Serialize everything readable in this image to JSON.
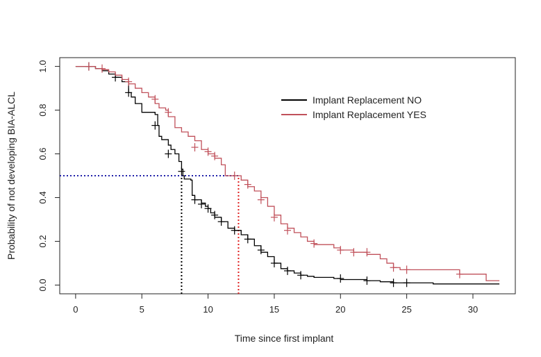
{
  "chart_data": {
    "type": "line",
    "subtype": "kaplan-meier-step",
    "title": "",
    "xlabel": "Time since first implant",
    "ylabel": "Probability of not developing BIA-ALCL",
    "xlim": [
      -1.2,
      33.2
    ],
    "ylim": [
      -0.04,
      1.04
    ],
    "x_ticks": [
      0,
      5,
      10,
      15,
      20,
      25,
      30
    ],
    "y_ticks": [
      0.0,
      0.2,
      0.4,
      0.6,
      0.8,
      1.0
    ],
    "x_tick_labels": [
      "0",
      "5",
      "10",
      "15",
      "20",
      "25",
      "30"
    ],
    "y_tick_labels": [
      "0.0",
      "0.2",
      "0.4",
      "0.6",
      "0.8",
      "1.0"
    ],
    "grid": false,
    "legend_position": "top-right",
    "series": [
      {
        "name": "Implant Replacement NO",
        "color": "#000000",
        "steps": [
          [
            0,
            1.0
          ],
          [
            1.5,
            0.99
          ],
          [
            2,
            0.98
          ],
          [
            2.5,
            0.965
          ],
          [
            3,
            0.95
          ],
          [
            3.5,
            0.93
          ],
          [
            4,
            0.88
          ],
          [
            4.2,
            0.86
          ],
          [
            4.5,
            0.83
          ],
          [
            5,
            0.79
          ],
          [
            6,
            0.78
          ],
          [
            6.2,
            0.73
          ],
          [
            6.3,
            0.68
          ],
          [
            6.5,
            0.665
          ],
          [
            7,
            0.64
          ],
          [
            7.2,
            0.62
          ],
          [
            7.5,
            0.6
          ],
          [
            7.8,
            0.565
          ],
          [
            8,
            0.53
          ],
          [
            8.1,
            0.5
          ],
          [
            8.2,
            0.485
          ],
          [
            8.7,
            0.48
          ],
          [
            8.8,
            0.41
          ],
          [
            9,
            0.39
          ],
          [
            9.5,
            0.375
          ],
          [
            9.8,
            0.36
          ],
          [
            10,
            0.35
          ],
          [
            10.2,
            0.33
          ],
          [
            10.5,
            0.31
          ],
          [
            11,
            0.29
          ],
          [
            11.5,
            0.26
          ],
          [
            12,
            0.25
          ],
          [
            12.5,
            0.23
          ],
          [
            13,
            0.21
          ],
          [
            13.5,
            0.18
          ],
          [
            14,
            0.15
          ],
          [
            14.5,
            0.13
          ],
          [
            15,
            0.1
          ],
          [
            15.5,
            0.075
          ],
          [
            16,
            0.065
          ],
          [
            16.5,
            0.055
          ],
          [
            17,
            0.045
          ],
          [
            17.5,
            0.04
          ],
          [
            18,
            0.035
          ],
          [
            19.5,
            0.03
          ],
          [
            20,
            0.025
          ],
          [
            22,
            0.02
          ],
          [
            23,
            0.015
          ],
          [
            24,
            0.01
          ],
          [
            27,
            0.005
          ],
          [
            32,
            0.005
          ]
        ],
        "end_x": 32,
        "censored": [
          [
            1,
            1.0
          ],
          [
            3,
            0.95
          ],
          [
            4,
            0.88
          ],
          [
            6,
            0.73
          ],
          [
            7,
            0.6
          ],
          [
            8,
            0.52
          ],
          [
            9,
            0.39
          ],
          [
            9.5,
            0.37
          ],
          [
            10,
            0.35
          ],
          [
            10.5,
            0.32
          ],
          [
            11,
            0.29
          ],
          [
            12,
            0.25
          ],
          [
            13,
            0.21
          ],
          [
            14,
            0.16
          ],
          [
            15,
            0.1
          ],
          [
            16,
            0.065
          ],
          [
            17,
            0.045
          ],
          [
            20,
            0.03
          ],
          [
            22,
            0.02
          ],
          [
            24,
            0.01
          ],
          [
            25,
            0.01
          ]
        ]
      },
      {
        "name": "Implant Replacement YES",
        "color": "#c0505a",
        "steps": [
          [
            0,
            1.0
          ],
          [
            1.5,
            0.99
          ],
          [
            2,
            0.985
          ],
          [
            2.5,
            0.975
          ],
          [
            3,
            0.96
          ],
          [
            3.5,
            0.94
          ],
          [
            4,
            0.92
          ],
          [
            4.5,
            0.9
          ],
          [
            5,
            0.88
          ],
          [
            5.5,
            0.86
          ],
          [
            6,
            0.83
          ],
          [
            6.3,
            0.81
          ],
          [
            6.8,
            0.8
          ],
          [
            7,
            0.77
          ],
          [
            7.5,
            0.72
          ],
          [
            8,
            0.7
          ],
          [
            8.5,
            0.68
          ],
          [
            9,
            0.66
          ],
          [
            9.5,
            0.62
          ],
          [
            10,
            0.6
          ],
          [
            10.5,
            0.58
          ],
          [
            11,
            0.55
          ],
          [
            11.3,
            0.5
          ],
          [
            12.5,
            0.48
          ],
          [
            13,
            0.45
          ],
          [
            13.5,
            0.43
          ],
          [
            14,
            0.4
          ],
          [
            14.5,
            0.36
          ],
          [
            15,
            0.32
          ],
          [
            15.5,
            0.28
          ],
          [
            16,
            0.26
          ],
          [
            16.5,
            0.24
          ],
          [
            17,
            0.22
          ],
          [
            17.5,
            0.2
          ],
          [
            18,
            0.185
          ],
          [
            19.5,
            0.17
          ],
          [
            20,
            0.16
          ],
          [
            21,
            0.15
          ],
          [
            22,
            0.14
          ],
          [
            23,
            0.12
          ],
          [
            23.5,
            0.1
          ],
          [
            24,
            0.08
          ],
          [
            24.5,
            0.07
          ],
          [
            29,
            0.05
          ],
          [
            31,
            0.02
          ],
          [
            32,
            0.02
          ]
        ],
        "end_x": 32,
        "censored": [
          [
            1,
            1.0
          ],
          [
            2,
            0.99
          ],
          [
            4,
            0.93
          ],
          [
            6,
            0.85
          ],
          [
            7,
            0.79
          ],
          [
            9,
            0.63
          ],
          [
            10,
            0.61
          ],
          [
            10.5,
            0.59
          ],
          [
            12,
            0.5
          ],
          [
            13,
            0.46
          ],
          [
            14,
            0.39
          ],
          [
            15,
            0.31
          ],
          [
            16,
            0.25
          ],
          [
            18,
            0.19
          ],
          [
            20,
            0.16
          ],
          [
            21,
            0.15
          ],
          [
            22,
            0.15
          ],
          [
            24,
            0.08
          ],
          [
            25,
            0.07
          ],
          [
            29,
            0.05
          ]
        ]
      }
    ],
    "reference_lines": [
      {
        "from": [
          -1.2,
          0.5
        ],
        "to": [
          12.3,
          0.5
        ],
        "color": "#1f1fa8",
        "style": "dotted"
      },
      {
        "from": [
          8.0,
          -0.04
        ],
        "to": [
          8.0,
          0.5
        ],
        "color": "#000000",
        "style": "dotted"
      },
      {
        "from": [
          12.3,
          -0.04
        ],
        "to": [
          12.3,
          0.5
        ],
        "color": "#e02020",
        "style": "dotted"
      }
    ]
  }
}
